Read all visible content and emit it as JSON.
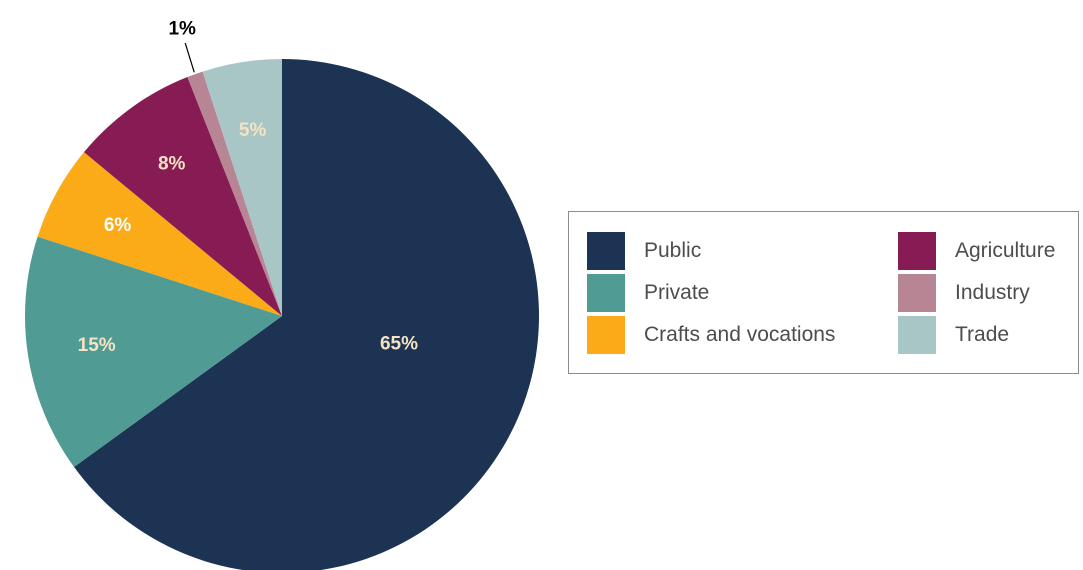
{
  "chart_data": {
    "type": "pie",
    "slices": [
      {
        "name": "Public",
        "value": 65,
        "label": "65%",
        "color": "#1d3354",
        "label_color": "#f3e3c3"
      },
      {
        "name": "Private",
        "value": 15,
        "label": "15%",
        "color": "#519b95",
        "label_color": "#f3e3c3"
      },
      {
        "name": "Crafts and vocations",
        "value": 6,
        "label": "6%",
        "color": "#fbaa18",
        "label_color": "#ffffff"
      },
      {
        "name": "Agriculture",
        "value": 8,
        "label": "8%",
        "color": "#871b53",
        "label_color": "#f3e3c3"
      },
      {
        "name": "Industry",
        "value": 1,
        "label": "1%",
        "color": "#b88595",
        "label_color": "#000000"
      },
      {
        "name": "Trade",
        "value": 5,
        "label": "5%",
        "color": "#a9c6c6",
        "label_color": "#f3e3c3"
      }
    ],
    "direction": "clockwise from top",
    "legend": {
      "placement": "right",
      "columns": [
        [
          "Public",
          "Private",
          "Crafts and vocations"
        ],
        [
          "Agriculture",
          "Industry",
          "Trade"
        ]
      ]
    }
  }
}
